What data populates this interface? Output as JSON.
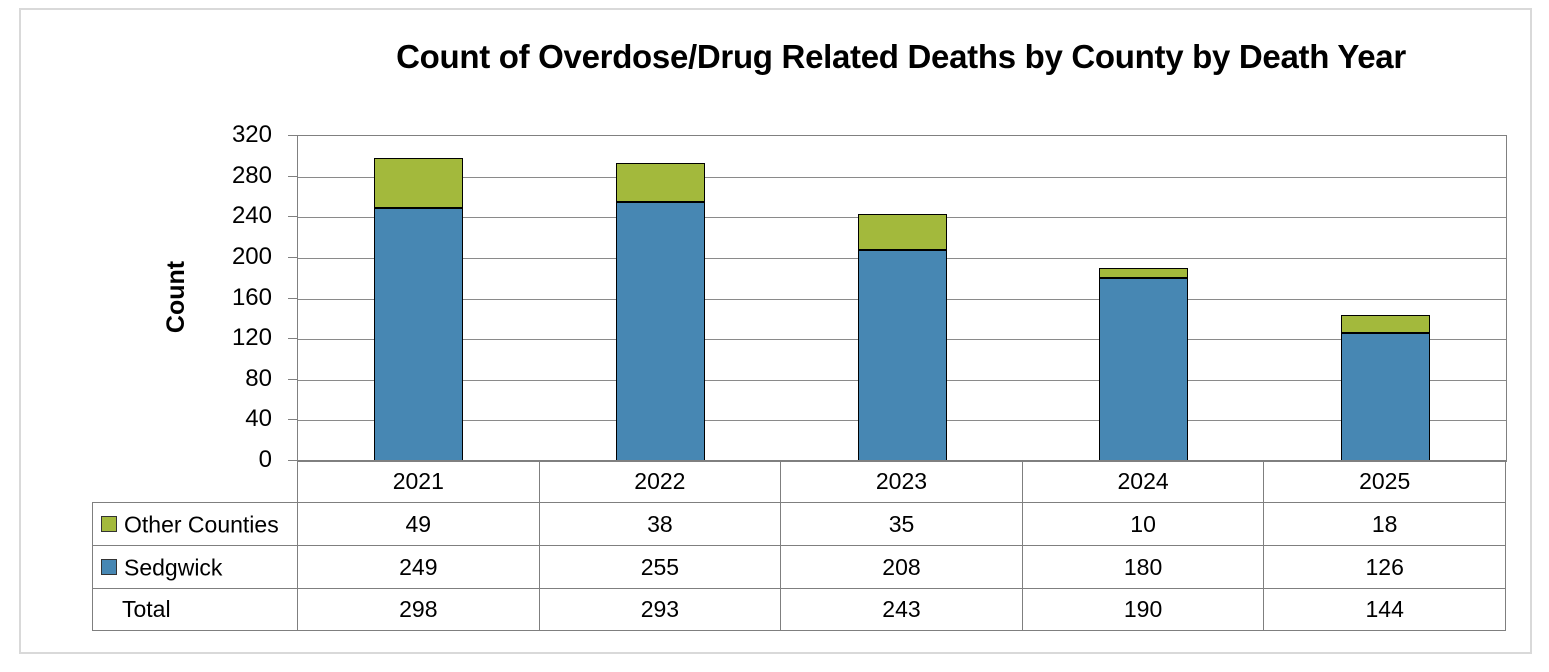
{
  "chart_data": {
    "type": "bar",
    "stacked": true,
    "title": "Count of Overdose/Drug Related Deaths by County by Death Year",
    "categories": [
      "2021",
      "2022",
      "2023",
      "2024",
      "2025"
    ],
    "series": [
      {
        "name": "Other Counties",
        "color": "#a3b93c",
        "values": [
          49,
          38,
          35,
          10,
          18
        ]
      },
      {
        "name": "Sedgwick",
        "color": "#4787b3",
        "values": [
          249,
          255,
          208,
          180,
          126
        ]
      }
    ],
    "stack_order_bottom_to_top": [
      "Sedgwick",
      "Other Counties"
    ],
    "total_row": {
      "label": "Total",
      "values": [
        298,
        293,
        243,
        190,
        144
      ]
    },
    "xlabel": "",
    "ylabel": "Count",
    "ylim": [
      0,
      320
    ],
    "yticks": [
      0,
      40,
      80,
      120,
      160,
      200,
      240,
      280,
      320
    ],
    "grid": "horizontal-major",
    "legend_position": "data-table-left",
    "colors": {
      "bar_border": "#000000",
      "gridline": "#8a8a8a",
      "table_border": "#7f7f7f",
      "frame_border": "#d9d9d9",
      "background": "#ffffff",
      "text": "#000000"
    }
  }
}
